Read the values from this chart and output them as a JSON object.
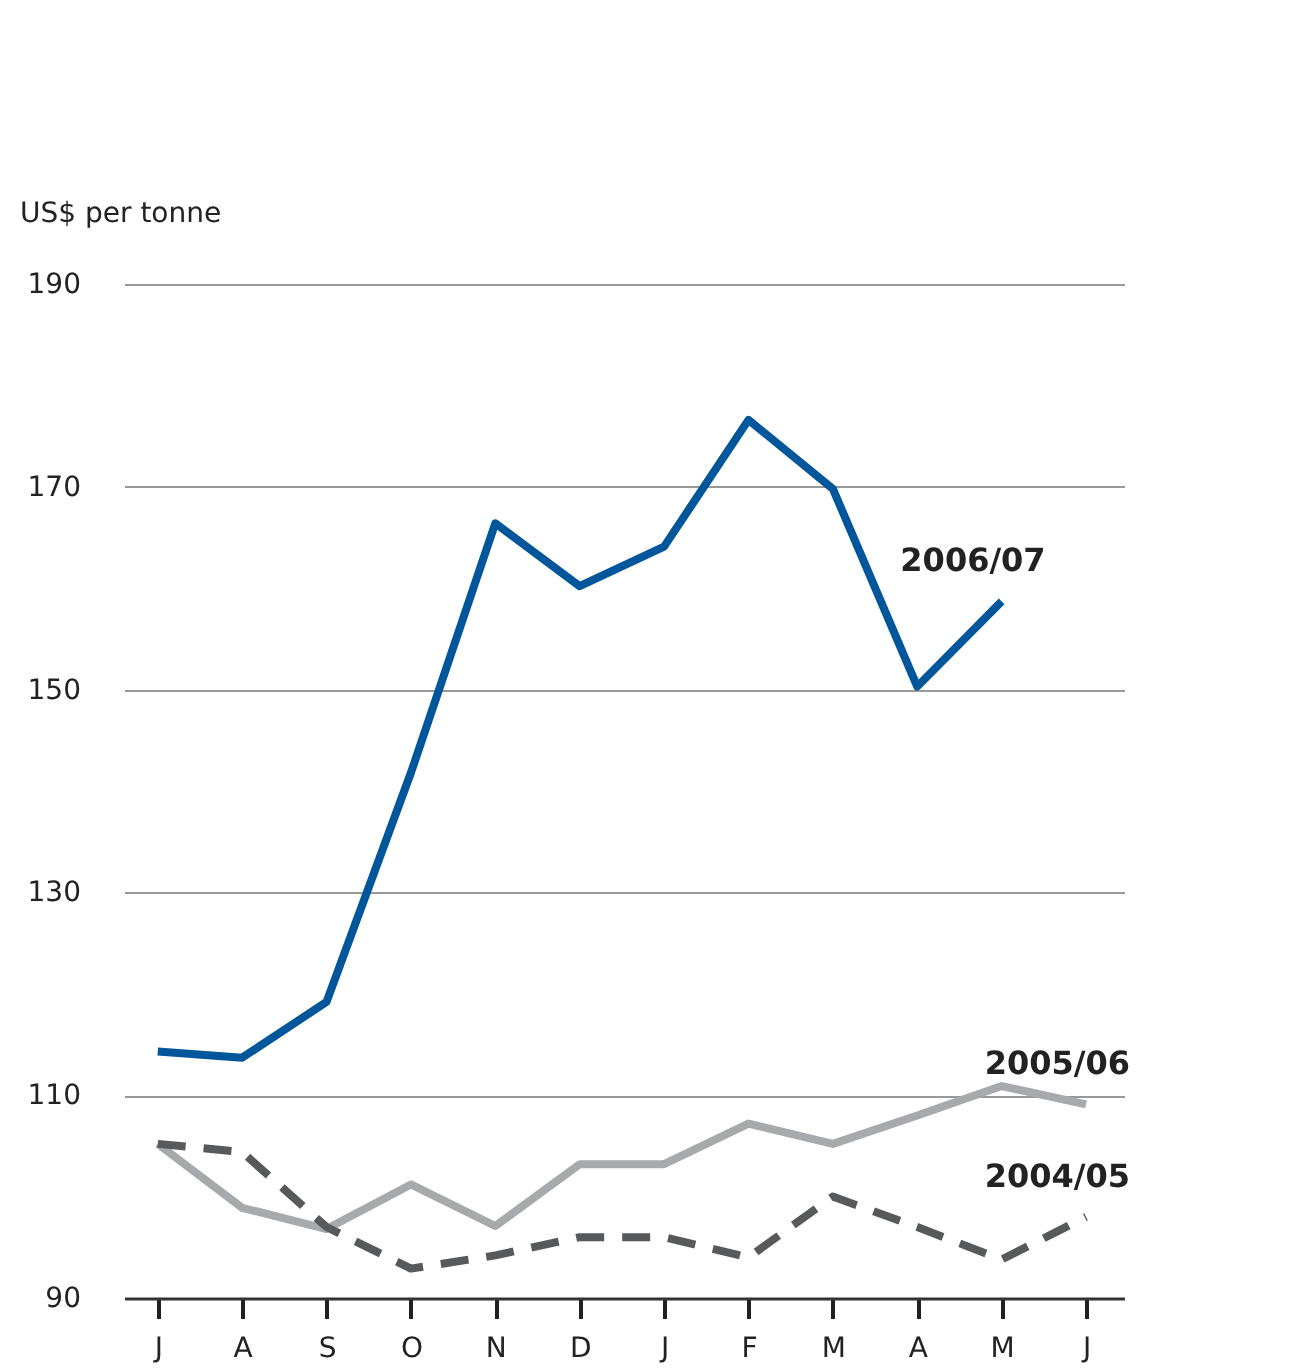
{
  "chart_data": {
    "type": "line",
    "ylabel": "US$ per tonne",
    "categories": [
      "J",
      "A",
      "S",
      "O",
      "N",
      "D",
      "J",
      "F",
      "M",
      "A",
      "M",
      "J"
    ],
    "series": [
      {
        "name": "2006/07",
        "color": "#00569a",
        "line_style": "solid",
        "values": [
          114.3,
          113.7,
          119.2,
          141.8,
          166.4,
          160.2,
          164.1,
          176.6,
          169.8,
          150.3,
          158.7,
          null
        ]
      },
      {
        "name": "2005/06",
        "color": "#a7a9ac",
        "line_style": "solid",
        "values": [
          105.2,
          98.9,
          96.8,
          101.2,
          97.1,
          103.2,
          103.2,
          107.2,
          105.2,
          108.0,
          110.9,
          109.1
        ]
      },
      {
        "name": "2004/05",
        "color": "#58595b",
        "line_style": "dashed",
        "values": [
          105.2,
          104.4,
          97.0,
          92.9,
          94.2,
          96.0,
          96.0,
          94.0,
          100.0,
          97.0,
          93.8,
          98.0
        ]
      }
    ],
    "ylim": [
      90,
      190
    ],
    "yticks": [
      90,
      110,
      130,
      150,
      170,
      190
    ],
    "grid": "y",
    "legend": false,
    "marker": "none"
  }
}
